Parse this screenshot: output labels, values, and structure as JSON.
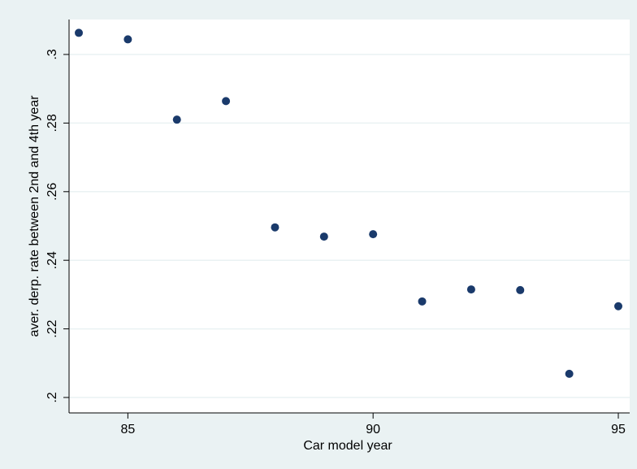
{
  "chart_data": {
    "type": "scatter",
    "title": "",
    "xlabel": "Car model year",
    "ylabel": "aver. derp. rate between 2nd and 4th year",
    "xlim": [
      84,
      95
    ],
    "ylim": [
      0.2,
      0.3
    ],
    "xticks": [
      85,
      90,
      95
    ],
    "yticks": [
      0.2,
      0.22,
      0.24,
      0.26,
      0.28,
      0.3
    ],
    "xtick_labels": [
      "85",
      "90",
      "95"
    ],
    "ytick_labels": [
      ".2",
      ".22",
      ".24",
      ".26",
      ".28",
      ".3"
    ],
    "grid": true,
    "legend": false,
    "colors": {
      "background": "#eaf2f3",
      "plot_area": "#ffffff",
      "marker": "#1a3a6b",
      "grid": "#eaf2f3",
      "axis": "#000000"
    },
    "x": [
      84,
      85,
      86,
      87,
      88,
      89,
      90,
      91,
      92,
      93,
      94,
      95
    ],
    "y": [
      0.3063,
      0.3044,
      0.281,
      0.2864,
      0.2496,
      0.2469,
      0.2476,
      0.228,
      0.2315,
      0.2313,
      0.2069,
      0.2266
    ]
  }
}
